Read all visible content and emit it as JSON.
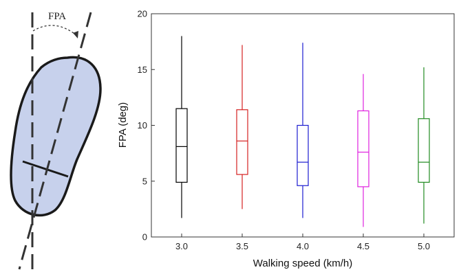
{
  "figure": {
    "foot_label": "FPA"
  },
  "chart_data": {
    "type": "box",
    "xlabel": "Walking speed (km/h)",
    "ylabel": "FPA (deg)",
    "ylim": [
      0,
      20
    ],
    "yticks": [
      0,
      5,
      10,
      15,
      20
    ],
    "grid": false,
    "categories": [
      "3.0",
      "3.5",
      "4.0",
      "4.5",
      "5.0"
    ],
    "colors": [
      "#000000",
      "#d42020",
      "#1c1cd0",
      "#e020e0",
      "#1f8a1f"
    ],
    "boxes": [
      {
        "category": "3.0",
        "min": 1.7,
        "q1": 4.9,
        "median": 8.1,
        "q3": 11.5,
        "max": 18.0
      },
      {
        "category": "3.5",
        "min": 2.5,
        "q1": 5.6,
        "median": 8.6,
        "q3": 11.4,
        "max": 17.2
      },
      {
        "category": "4.0",
        "min": 1.7,
        "q1": 4.6,
        "median": 6.7,
        "q3": 10.0,
        "max": 17.4
      },
      {
        "category": "4.5",
        "min": 0.9,
        "q1": 4.5,
        "median": 7.6,
        "q3": 11.3,
        "max": 14.6
      },
      {
        "category": "5.0",
        "min": 1.2,
        "q1": 4.9,
        "median": 6.7,
        "q3": 10.6,
        "max": 15.2
      }
    ]
  }
}
